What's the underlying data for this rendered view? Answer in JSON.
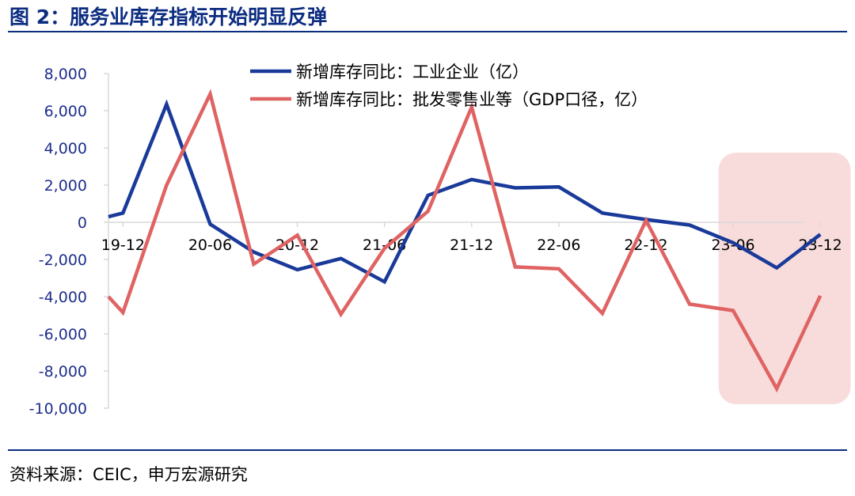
{
  "header": {
    "title": "图 2：服务业库存指标开始明显反弹"
  },
  "footer": {
    "source": "资料来源：CEIC，申万宏源研究"
  },
  "chart_data": {
    "type": "line",
    "title": "",
    "xlabel": "",
    "ylabel": "",
    "ylim": [
      -10000,
      8000
    ],
    "yticks": [
      8000,
      6000,
      4000,
      2000,
      0,
      -2000,
      -4000,
      -6000,
      -8000,
      -10000
    ],
    "ytick_labels": [
      "8,000",
      "6,000",
      "4,000",
      "2,000",
      "0",
      "-2,000",
      "-4,000",
      "-6,000",
      "-8,000",
      "-10,000"
    ],
    "xtick_labels": [
      "19-12",
      "20-06",
      "20-12",
      "21-06",
      "21-12",
      "22-06",
      "22-12",
      "23-06",
      "23-12"
    ],
    "legend_position": "top-center",
    "highlight": {
      "from": "23-05",
      "to": "24-01",
      "color": "#f8dcdc"
    },
    "series": [
      {
        "name": "新增库存同比：工业企业（亿）",
        "color": "#1a3a9a",
        "points": [
          [
            "19-11",
            300
          ],
          [
            "19-12",
            500
          ],
          [
            "20-03",
            6350
          ],
          [
            "20-06",
            -100
          ],
          [
            "20-09",
            -1600
          ],
          [
            "20-12",
            -2550
          ],
          [
            "21-03",
            -1950
          ],
          [
            "21-06",
            -3200
          ],
          [
            "21-09",
            1450
          ],
          [
            "21-12",
            2300
          ],
          [
            "22-03",
            1850
          ],
          [
            "22-06",
            1900
          ],
          [
            "22-09",
            500
          ],
          [
            "22-12",
            150
          ],
          [
            "23-03",
            -150
          ],
          [
            "23-06",
            -1100
          ],
          [
            "23-09",
            -2450
          ],
          [
            "23-12",
            -650
          ]
        ]
      },
      {
        "name": "新增库存同比：批发零售业等（GDP口径，亿）",
        "color": "#e06363",
        "points": [
          [
            "19-11",
            -4000
          ],
          [
            "19-12",
            -4850
          ],
          [
            "20-03",
            2000
          ],
          [
            "20-06",
            6900
          ],
          [
            "20-09",
            -2250
          ],
          [
            "20-12",
            -700
          ],
          [
            "21-03",
            -4950
          ],
          [
            "21-06",
            -1400
          ],
          [
            "21-09",
            600
          ],
          [
            "21-12",
            6200
          ],
          [
            "22-03",
            -2400
          ],
          [
            "22-06",
            -2500
          ],
          [
            "22-09",
            -4900
          ],
          [
            "22-12",
            100
          ],
          [
            "23-03",
            -4400
          ],
          [
            "23-06",
            -4750
          ],
          [
            "23-09",
            -8950
          ],
          [
            "23-12",
            -3950
          ]
        ]
      }
    ]
  }
}
